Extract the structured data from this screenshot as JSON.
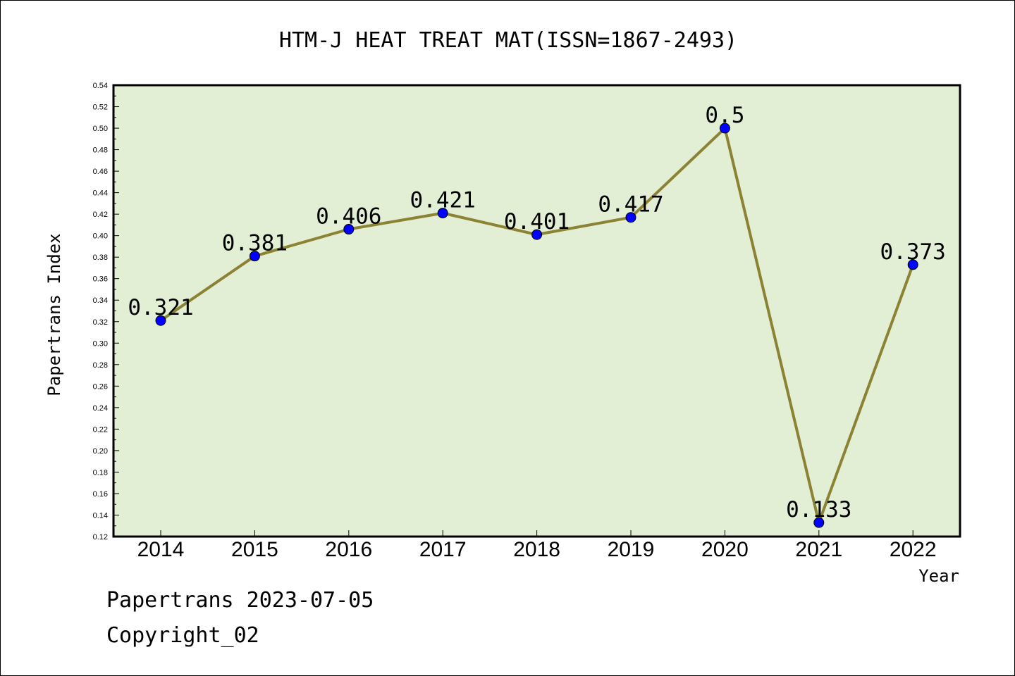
{
  "chart_data": {
    "type": "line",
    "title": "HTM-J HEAT TREAT MAT(ISSN=1867-2493)",
    "xlabel": "Year",
    "ylabel": "Papertrans Index",
    "categories": [
      "2014",
      "2015",
      "2016",
      "2017",
      "2018",
      "2019",
      "2020",
      "2021",
      "2022"
    ],
    "values": [
      0.321,
      0.381,
      0.406,
      0.421,
      0.401,
      0.417,
      0.5,
      0.133,
      0.373
    ],
    "point_labels": [
      "0.321",
      "0.381",
      "0.406",
      "0.421",
      "0.401",
      "0.417",
      "0.5",
      "0.133",
      "0.373"
    ],
    "ylim": [
      0.12,
      0.54
    ],
    "ytick_labels": [
      "0.12",
      "0.14",
      "0.16",
      "0.18",
      "0.20",
      "0.22",
      "0.24",
      "0.26",
      "0.28",
      "0.30",
      "0.32",
      "0.34",
      "0.36",
      "0.38",
      "0.40",
      "0.42",
      "0.44",
      "0.46",
      "0.48",
      "0.50",
      "0.52",
      "0.54"
    ],
    "grid": false,
    "colors": {
      "plot_background": "#e2efd5",
      "line": "#8b8233",
      "marker": "#0000ff"
    }
  },
  "footer": {
    "line1": "Papertrans 2023-07-05",
    "line2": "Copyright_02"
  }
}
